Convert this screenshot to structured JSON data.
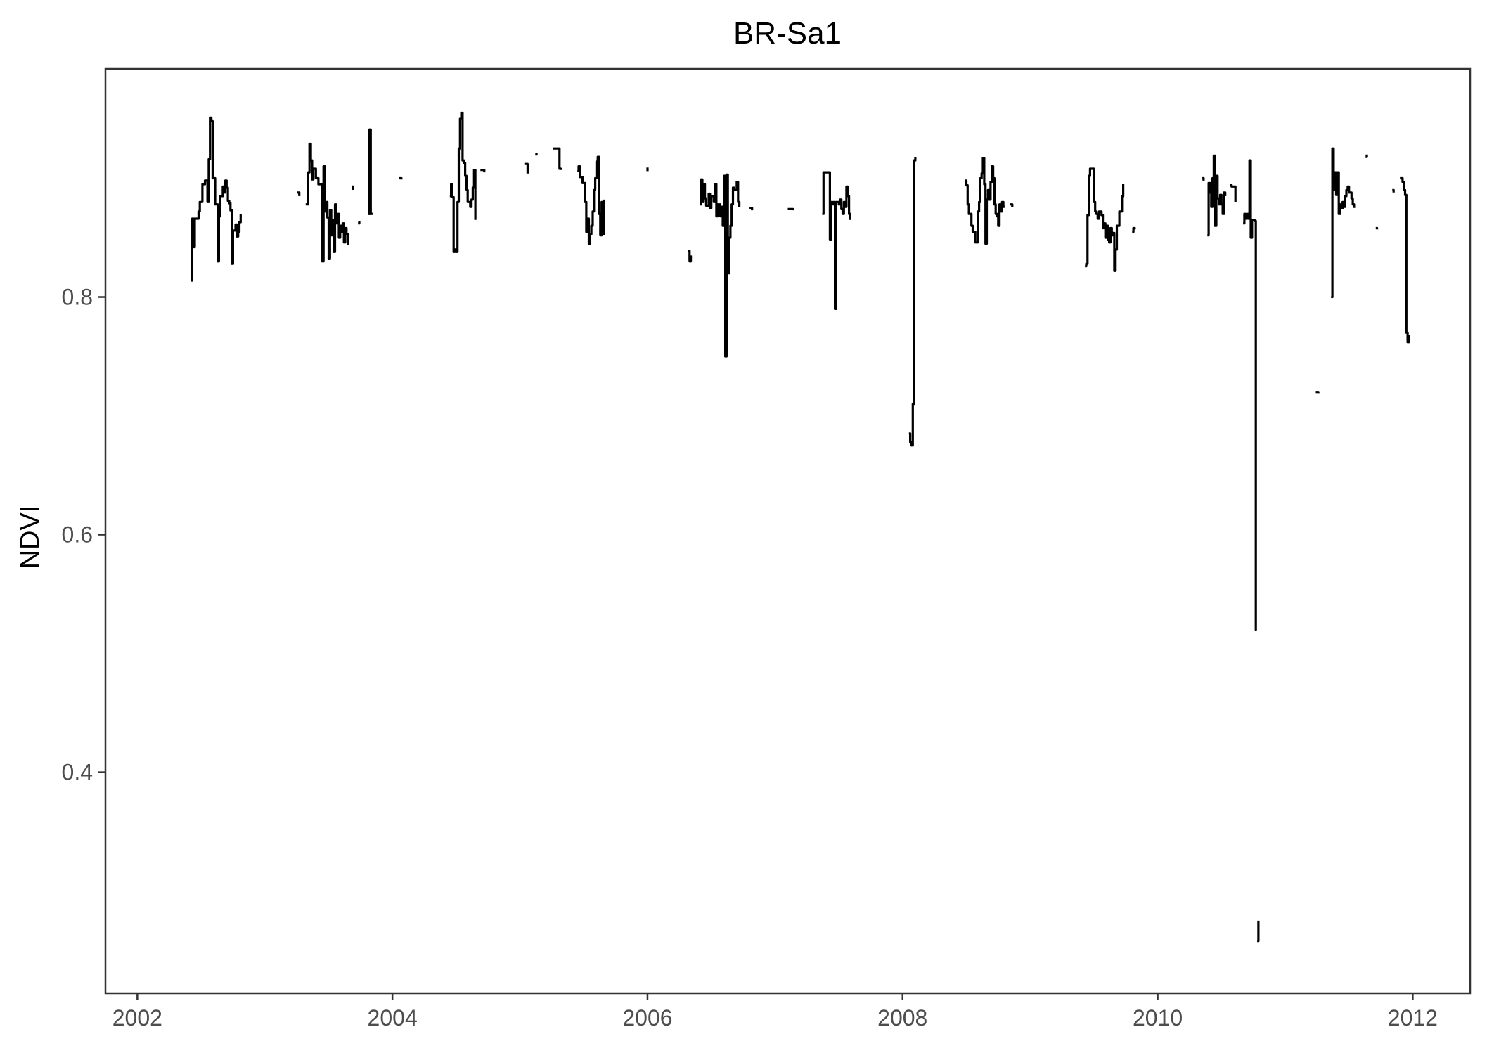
{
  "chart_data": {
    "type": "line",
    "title": "BR-Sa1",
    "xlabel": "",
    "ylabel": "NDVI",
    "xlim": [
      2001.75,
      2012.45
    ],
    "ylim": [
      0.214,
      0.992
    ],
    "x_ticks": [
      2002,
      2004,
      2006,
      2008,
      2010,
      2012
    ],
    "x_tick_labels": [
      "2002",
      "2004",
      "2006",
      "2008",
      "2010",
      "2012"
    ],
    "y_ticks": [
      0.4,
      0.6,
      0.8
    ],
    "y_tick_labels": [
      "0.4",
      "0.6",
      "0.8"
    ],
    "grid": false,
    "legend": "none",
    "colors": {
      "line": "#000000",
      "panel_border": "#333333",
      "text": "#000000",
      "tick_text": "#4d4d4d"
    },
    "segments": [
      [
        [
          2002.43,
          0.813
        ],
        [
          2002.43,
          0.866
        ],
        [
          2002.44,
          0.842
        ],
        [
          2002.45,
          0.866
        ],
        [
          2002.47,
          0.866
        ],
        [
          2002.48,
          0.872
        ],
        [
          2002.49,
          0.88
        ],
        [
          2002.5,
          0.88
        ],
        [
          2002.51,
          0.895
        ],
        [
          2002.53,
          0.898
        ],
        [
          2002.54,
          0.898
        ],
        [
          2002.55,
          0.88
        ],
        [
          2002.56,
          0.916
        ],
        [
          2002.57,
          0.951
        ],
        [
          2002.58,
          0.948
        ],
        [
          2002.59,
          0.9
        ],
        [
          2002.61,
          0.878
        ],
        [
          2002.62,
          0.878
        ],
        [
          2002.63,
          0.83
        ],
        [
          2002.64,
          0.868
        ],
        [
          2002.65,
          0.885
        ],
        [
          2002.67,
          0.893
        ],
        [
          2002.68,
          0.888
        ],
        [
          2002.69,
          0.898
        ],
        [
          2002.7,
          0.892
        ],
        [
          2002.71,
          0.881
        ],
        [
          2002.72,
          0.879
        ],
        [
          2002.73,
          0.873
        ],
        [
          2002.74,
          0.828
        ],
        [
          2002.75,
          0.856
        ],
        [
          2002.77,
          0.861
        ],
        [
          2002.78,
          0.851
        ],
        [
          2002.79,
          0.855
        ],
        [
          2002.8,
          0.863
        ],
        [
          2002.81,
          0.87
        ]
      ],
      [
        [
          2003.25,
          0.888
        ],
        [
          2003.27,
          0.885
        ]
      ],
      [
        [
          2003.32,
          0.878
        ],
        [
          2003.34,
          0.905
        ],
        [
          2003.35,
          0.929
        ],
        [
          2003.36,
          0.915
        ],
        [
          2003.37,
          0.899
        ],
        [
          2003.38,
          0.908
        ],
        [
          2003.4,
          0.9
        ],
        [
          2003.42,
          0.895
        ],
        [
          2003.45,
          0.83
        ],
        [
          2003.46,
          0.91
        ],
        [
          2003.47,
          0.872
        ],
        [
          2003.48,
          0.88
        ],
        [
          2003.49,
          0.867
        ],
        [
          2003.5,
          0.832
        ],
        [
          2003.51,
          0.873
        ],
        [
          2003.52,
          0.852
        ],
        [
          2003.53,
          0.865
        ],
        [
          2003.54,
          0.838
        ],
        [
          2003.55,
          0.878
        ],
        [
          2003.56,
          0.862
        ],
        [
          2003.57,
          0.87
        ],
        [
          2003.58,
          0.85
        ],
        [
          2003.59,
          0.86
        ],
        [
          2003.6,
          0.855
        ],
        [
          2003.61,
          0.862
        ],
        [
          2003.62,
          0.846
        ],
        [
          2003.63,
          0.858
        ],
        [
          2003.64,
          0.853
        ],
        [
          2003.65,
          0.844
        ]
      ],
      [
        [
          2003.68,
          0.893
        ],
        [
          2003.69,
          0.89
        ]
      ],
      [
        [
          2003.73,
          0.862
        ],
        [
          2003.74,
          0.864
        ]
      ],
      [
        [
          2003.82,
          0.869
        ],
        [
          2003.82,
          0.941
        ],
        [
          2003.83,
          0.87
        ],
        [
          2003.85,
          0.87
        ]
      ],
      [
        [
          2004.05,
          0.9
        ],
        [
          2004.07,
          0.899
        ]
      ],
      [
        [
          2004.45,
          0.885
        ],
        [
          2004.46,
          0.895
        ],
        [
          2004.47,
          0.884
        ],
        [
          2004.48,
          0.838
        ],
        [
          2004.49,
          0.84
        ],
        [
          2004.5,
          0.838
        ],
        [
          2004.51,
          0.88
        ],
        [
          2004.52,
          0.925
        ],
        [
          2004.53,
          0.95
        ],
        [
          2004.54,
          0.955
        ],
        [
          2004.55,
          0.915
        ],
        [
          2004.56,
          0.913
        ],
        [
          2004.57,
          0.902
        ],
        [
          2004.58,
          0.89
        ],
        [
          2004.59,
          0.88
        ],
        [
          2004.61,
          0.876
        ],
        [
          2004.62,
          0.882
        ],
        [
          2004.63,
          0.892
        ],
        [
          2004.64,
          0.907
        ],
        [
          2004.65,
          0.865
        ]
      ],
      [
        [
          2004.69,
          0.907
        ],
        [
          2004.72,
          0.905
        ]
      ],
      [
        [
          2005.04,
          0.912
        ],
        [
          2005.06,
          0.904
        ]
      ],
      [
        [
          2005.12,
          0.92
        ],
        [
          2005.13,
          0.921
        ]
      ],
      [
        [
          2005.26,
          0.925
        ],
        [
          2005.3,
          0.925
        ],
        [
          2005.31,
          0.908
        ],
        [
          2005.32,
          0.907
        ]
      ],
      [
        [
          2005.45,
          0.906
        ],
        [
          2005.46,
          0.91
        ],
        [
          2005.47,
          0.901
        ],
        [
          2005.49,
          0.896
        ],
        [
          2005.51,
          0.88
        ],
        [
          2005.52,
          0.855
        ],
        [
          2005.53,
          0.866
        ],
        [
          2005.54,
          0.845
        ],
        [
          2005.55,
          0.853
        ],
        [
          2005.56,
          0.86
        ],
        [
          2005.57,
          0.872
        ],
        [
          2005.58,
          0.89
        ],
        [
          2005.59,
          0.9
        ],
        [
          2005.6,
          0.914
        ],
        [
          2005.61,
          0.918
        ],
        [
          2005.62,
          0.87
        ],
        [
          2005.63,
          0.852
        ],
        [
          2005.64,
          0.88
        ],
        [
          2005.65,
          0.853
        ],
        [
          2005.66,
          0.882
        ]
      ],
      [
        [
          2006.0,
          0.909
        ],
        [
          2006.0,
          0.906
        ]
      ],
      [
        [
          2006.32,
          0.839
        ],
        [
          2006.33,
          0.83
        ],
        [
          2006.34,
          0.835
        ]
      ],
      [
        [
          2006.41,
          0.878
        ],
        [
          2006.42,
          0.899
        ],
        [
          2006.43,
          0.88
        ],
        [
          2006.44,
          0.895
        ],
        [
          2006.45,
          0.883
        ],
        [
          2006.46,
          0.877
        ],
        [
          2006.48,
          0.887
        ],
        [
          2006.49,
          0.875
        ],
        [
          2006.5,
          0.885
        ],
        [
          2006.52,
          0.88
        ],
        [
          2006.53,
          0.895
        ],
        [
          2006.54,
          0.868
        ],
        [
          2006.55,
          0.878
        ],
        [
          2006.57,
          0.868
        ],
        [
          2006.58,
          0.876
        ],
        [
          2006.59,
          0.86
        ],
        [
          2006.6,
          0.902
        ],
        [
          2006.61,
          0.75
        ],
        [
          2006.62,
          0.903
        ],
        [
          2006.63,
          0.82
        ],
        [
          2006.64,
          0.85
        ],
        [
          2006.65,
          0.86
        ],
        [
          2006.66,
          0.878
        ],
        [
          2006.67,
          0.892
        ],
        [
          2006.68,
          0.89
        ],
        [
          2006.7,
          0.897
        ],
        [
          2006.71,
          0.88
        ],
        [
          2006.72,
          0.876
        ]
      ],
      [
        [
          2006.8,
          0.875
        ],
        [
          2006.82,
          0.873
        ]
      ],
      [
        [
          2007.1,
          0.874
        ],
        [
          2007.12,
          0.874
        ],
        [
          2007.14,
          0.873
        ]
      ],
      [
        [
          2007.37,
          0.87
        ],
        [
          2007.38,
          0.905
        ],
        [
          2007.42,
          0.905
        ],
        [
          2007.43,
          0.848
        ],
        [
          2007.44,
          0.88
        ],
        [
          2007.45,
          0.878
        ],
        [
          2007.46,
          0.88
        ],
        [
          2007.47,
          0.79
        ],
        [
          2007.48,
          0.88
        ],
        [
          2007.5,
          0.878
        ],
        [
          2007.51,
          0.882
        ],
        [
          2007.52,
          0.874
        ],
        [
          2007.53,
          0.87
        ],
        [
          2007.54,
          0.88
        ],
        [
          2007.55,
          0.876
        ],
        [
          2007.56,
          0.893
        ],
        [
          2007.57,
          0.885
        ],
        [
          2007.58,
          0.87
        ],
        [
          2007.59,
          0.865
        ]
      ],
      [
        [
          2008.05,
          0.685
        ],
        [
          2008.06,
          0.678
        ],
        [
          2008.07,
          0.675
        ],
        [
          2008.08,
          0.71
        ],
        [
          2008.09,
          0.915
        ],
        [
          2008.1,
          0.918
        ]
      ],
      [
        [
          2008.49,
          0.898
        ],
        [
          2008.5,
          0.894
        ],
        [
          2008.51,
          0.878
        ],
        [
          2008.52,
          0.87
        ],
        [
          2008.53,
          0.87
        ],
        [
          2008.54,
          0.86
        ],
        [
          2008.55,
          0.855
        ],
        [
          2008.57,
          0.846
        ],
        [
          2008.59,
          0.872
        ],
        [
          2008.6,
          0.88
        ],
        [
          2008.61,
          0.9
        ],
        [
          2008.62,
          0.904
        ],
        [
          2008.63,
          0.917
        ],
        [
          2008.64,
          0.895
        ],
        [
          2008.65,
          0.845
        ],
        [
          2008.66,
          0.882
        ],
        [
          2008.67,
          0.89
        ],
        [
          2008.68,
          0.882
        ],
        [
          2008.69,
          0.897
        ],
        [
          2008.7,
          0.91
        ],
        [
          2008.71,
          0.9
        ],
        [
          2008.72,
          0.878
        ],
        [
          2008.73,
          0.87
        ],
        [
          2008.74,
          0.868
        ],
        [
          2008.75,
          0.86
        ],
        [
          2008.76,
          0.878
        ],
        [
          2008.77,
          0.872
        ],
        [
          2008.78,
          0.88
        ],
        [
          2008.79,
          0.876
        ],
        [
          2008.8,
          0.876
        ]
      ],
      [
        [
          2008.84,
          0.878
        ],
        [
          2008.86,
          0.876
        ]
      ],
      [
        [
          2009.43,
          0.826
        ],
        [
          2009.44,
          0.828
        ],
        [
          2009.45,
          0.869
        ],
        [
          2009.46,
          0.902
        ],
        [
          2009.47,
          0.908
        ],
        [
          2009.49,
          0.908
        ],
        [
          2009.5,
          0.88
        ],
        [
          2009.51,
          0.872
        ],
        [
          2009.52,
          0.87
        ],
        [
          2009.53,
          0.866
        ],
        [
          2009.54,
          0.872
        ],
        [
          2009.56,
          0.869
        ],
        [
          2009.57,
          0.858
        ],
        [
          2009.58,
          0.862
        ],
        [
          2009.59,
          0.85
        ],
        [
          2009.6,
          0.86
        ],
        [
          2009.61,
          0.848
        ],
        [
          2009.62,
          0.846
        ],
        [
          2009.63,
          0.858
        ],
        [
          2009.64,
          0.852
        ],
        [
          2009.65,
          0.854
        ],
        [
          2009.66,
          0.822
        ],
        [
          2009.67,
          0.84
        ],
        [
          2009.68,
          0.86
        ],
        [
          2009.7,
          0.872
        ],
        [
          2009.72,
          0.885
        ],
        [
          2009.73,
          0.895
        ]
      ],
      [
        [
          2009.8,
          0.855
        ],
        [
          2009.81,
          0.858
        ],
        [
          2009.82,
          0.857
        ]
      ],
      [
        [
          2010.35,
          0.9
        ],
        [
          2010.36,
          0.898
        ]
      ],
      [
        [
          2010.39,
          0.852
        ],
        [
          2010.4,
          0.896
        ],
        [
          2010.41,
          0.888
        ],
        [
          2010.42,
          0.876
        ],
        [
          2010.43,
          0.9
        ],
        [
          2010.44,
          0.919
        ],
        [
          2010.45,
          0.86
        ],
        [
          2010.46,
          0.902
        ],
        [
          2010.47,
          0.883
        ],
        [
          2010.48,
          0.878
        ],
        [
          2010.49,
          0.886
        ],
        [
          2010.5,
          0.878
        ],
        [
          2010.51,
          0.87
        ],
        [
          2010.52,
          0.888
        ],
        [
          2010.53,
          0.885
        ]
      ],
      [
        [
          2010.57,
          0.894
        ],
        [
          2010.58,
          0.893
        ],
        [
          2010.6,
          0.893
        ],
        [
          2010.61,
          0.88
        ]
      ],
      [
        [
          2010.67,
          0.862
        ],
        [
          2010.68,
          0.87
        ],
        [
          2010.69,
          0.866
        ],
        [
          2010.7,
          0.87
        ],
        [
          2010.71,
          0.866
        ],
        [
          2010.72,
          0.915
        ],
        [
          2010.73,
          0.85
        ],
        [
          2010.74,
          0.865
        ],
        [
          2010.76,
          0.864
        ],
        [
          2010.77,
          0.52
        ],
        [
          2010.77,
          0.525
        ]
      ],
      [
        [
          2010.78,
          0.258
        ],
        [
          2010.79,
          0.275
        ]
      ],
      [
        [
          2011.24,
          0.72
        ],
        [
          2011.26,
          0.719
        ]
      ],
      [
        [
          2011.36,
          0.8
        ],
        [
          2011.37,
          0.925
        ],
        [
          2011.38,
          0.89
        ],
        [
          2011.39,
          0.905
        ],
        [
          2011.4,
          0.886
        ],
        [
          2011.41,
          0.905
        ],
        [
          2011.42,
          0.87
        ],
        [
          2011.43,
          0.878
        ],
        [
          2011.44,
          0.875
        ],
        [
          2011.45,
          0.88
        ],
        [
          2011.46,
          0.876
        ],
        [
          2011.47,
          0.885
        ],
        [
          2011.48,
          0.89
        ],
        [
          2011.49,
          0.893
        ],
        [
          2011.5,
          0.888
        ],
        [
          2011.52,
          0.883
        ],
        [
          2011.53,
          0.878
        ],
        [
          2011.54,
          0.875
        ]
      ],
      [
        [
          2011.63,
          0.918
        ],
        [
          2011.64,
          0.92
        ]
      ],
      [
        [
          2011.71,
          0.858
        ],
        [
          2011.72,
          0.857
        ]
      ],
      [
        [
          2011.84,
          0.89
        ],
        [
          2011.85,
          0.888
        ]
      ],
      [
        [
          2011.9,
          0.9
        ],
        [
          2011.92,
          0.897
        ],
        [
          2011.93,
          0.89
        ],
        [
          2011.94,
          0.886
        ],
        [
          2011.95,
          0.77
        ],
        [
          2011.96,
          0.762
        ],
        [
          2011.97,
          0.768
        ]
      ]
    ]
  }
}
